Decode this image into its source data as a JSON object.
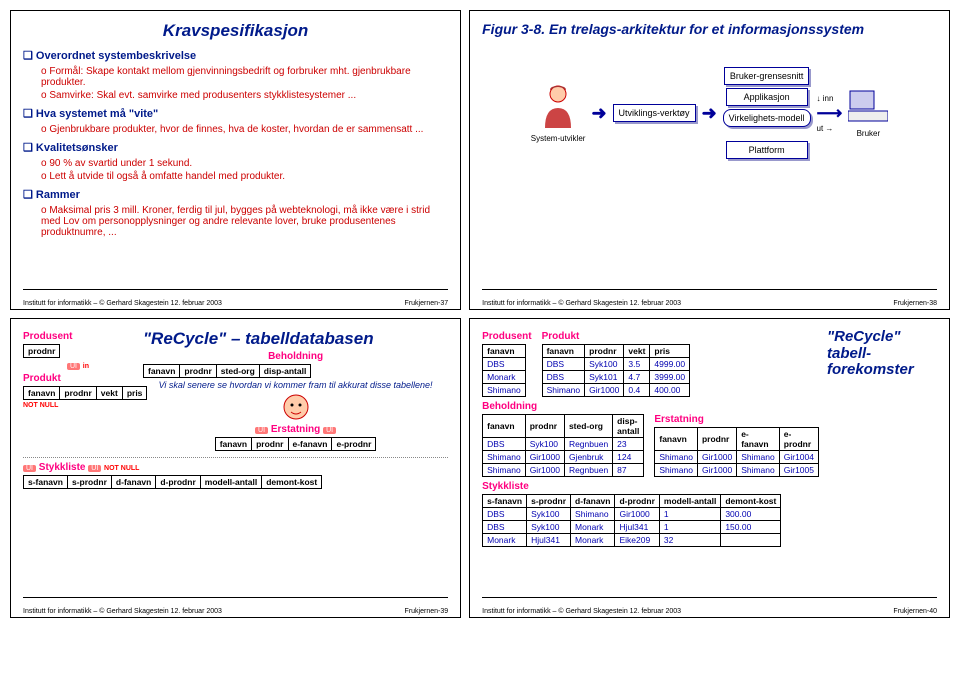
{
  "slide1": {
    "title": "Kravspesifikasjon",
    "h1": "Overordnet systembeskrivelse",
    "s1a": "Formål: Skape kontakt mellom gjenvinningsbedrift og forbruker mht. gjenbrukbare produkter.",
    "s1b": "Samvirke: Skal evt. samvirke med produsenters stykklistesystemer ...",
    "h2": "Hva systemet må \"vite\"",
    "s2a": "Gjenbrukbare produkter, hvor de finnes, hva de koster, hvordan de er sammensatt ...",
    "h3": "Kvalitetsønsker",
    "s3a": "90 % av svartid under 1 sekund.",
    "s3b": "Lett å utvide til også å omfatte handel med produkter.",
    "h4": "Rammer",
    "s4a": "Maksimal pris 3 mill. Kroner, ferdig til jul, bygges på webteknologi, må ikke være i strid med Lov om personopplysninger og andre relevante lover, bruke produsentenes produktnumre, ...",
    "footer_left": "Institutt for informatikk – © Gerhard Skagestein 12. februar 2003",
    "footer_right": "Frukjernen-37"
  },
  "slide2": {
    "title": "Figur 3-8. En trelags-arkitektur for et informasjonssystem",
    "lbl_sysutv": "System-utvikler",
    "lbl_utvikl": "Utviklings-verktøy",
    "lbl_bgr": "Bruker-grensesnitt",
    "lbl_app": "Applikasjon",
    "lbl_virk": "Virkelighets-modell",
    "lbl_platt": "Plattform",
    "lbl_bruker": "Bruker",
    "lbl_inn": "inn",
    "lbl_ut": "ut",
    "footer_left": "Institutt for informatikk – © Gerhard Skagestein 12. februar 2003",
    "footer_right": "Frukjernen-38"
  },
  "slide3": {
    "title": "\"ReCycle\" – tabelldatabasen",
    "t_produsent": "Produsent",
    "t_produkt": "Produkt",
    "t_behold": "Beholdning",
    "t_erstat": "Erstatning",
    "t_stykk": "Stykkliste",
    "callout": "Vi skal senere se hvordan vi kommer fram til akkurat disse tabellene!",
    "produsent_cols": [
      "prodnr"
    ],
    "produkt_cols": [
      "fanavn",
      "prodnr",
      "vekt",
      "pris"
    ],
    "behold_cols": [
      "fanavn",
      "prodnr",
      "sted-org",
      "disp-antall"
    ],
    "erstat_cols": [
      "fanavn",
      "prodnr",
      "e-fanavn",
      "e-prodnr"
    ],
    "stykk_cols": [
      "s-fanavn",
      "s-prodnr",
      "d-fanavn",
      "d-prodnr",
      "modell-antall",
      "demont-kost"
    ],
    "ui": "UI",
    "in": "in",
    "notnull": "NOT NULL",
    "footer_left": "Institutt for informatikk – © Gerhard Skagestein 12. februar 2003",
    "footer_right": "Frukjernen-39"
  },
  "slide4": {
    "title": "\"ReCycle\" tabell-forekomster",
    "t_produsent": "Produsent",
    "t_produkt": "Produkt",
    "t_behold": "Beholdning",
    "t_erstat": "Erstatning",
    "t_stykk": "Stykkliste",
    "produsent_cols": [
      "fanavn"
    ],
    "produsent_rows": [
      [
        "DBS"
      ],
      [
        "Monark"
      ],
      [
        "Shimano"
      ]
    ],
    "produkt_cols": [
      "fanavn",
      "prodnr",
      "vekt",
      "pris"
    ],
    "produkt_rows": [
      [
        "DBS",
        "Syk100",
        "3.5",
        "4999.00"
      ],
      [
        "DBS",
        "Syk101",
        "4.7",
        "3999.00"
      ],
      [
        "Shimano",
        "Gir1000",
        "0.4",
        "400.00"
      ]
    ],
    "behold_cols": [
      "fanavn",
      "prodnr",
      "sted-org",
      "disp-antall"
    ],
    "behold_rows": [
      [
        "DBS",
        "Syk100",
        "Regnbuen",
        "23"
      ],
      [
        "Shimano",
        "Gir1000",
        "Gjenbruk",
        "124"
      ],
      [
        "Shimano",
        "Gir1000",
        "Regnbuen",
        "87"
      ]
    ],
    "erstat_cols": [
      "fanavn",
      "prodnr",
      "e-fanavn",
      "e-prodnr"
    ],
    "erstat_rows": [
      [
        "Shimano",
        "Gir1000",
        "Shimano",
        "Gir1004"
      ],
      [
        "Shimano",
        "Gir1000",
        "Shimano",
        "Gir1005"
      ]
    ],
    "stykk_cols": [
      "s-fanavn",
      "s-prodnr",
      "d-fanavn",
      "d-prodnr",
      "modell-antall",
      "demont-kost"
    ],
    "stykk_rows": [
      [
        "DBS",
        "Syk100",
        "Shimano",
        "Gir1000",
        "1",
        "300.00"
      ],
      [
        "DBS",
        "Syk100",
        "Monark",
        "Hjul341",
        "1",
        "150.00"
      ],
      [
        "Monark",
        "Hjul341",
        "Monark",
        "Eike209",
        "32",
        ""
      ]
    ],
    "footer_left": "Institutt for informatikk – © Gerhard Skagestein 12. februar 2003",
    "footer_right": "Frukjernen-40"
  },
  "colors": {
    "title": "#001a8a",
    "bullet": "#001a8a",
    "sub": "#cc0000",
    "pink": "#ff0080",
    "blue_text": "#0000b0"
  }
}
